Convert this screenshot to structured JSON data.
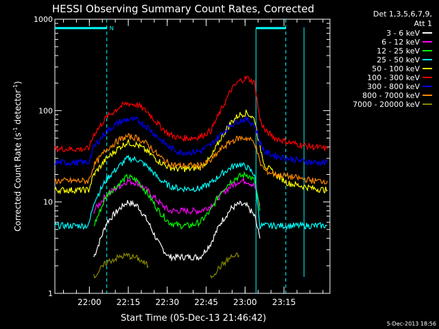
{
  "chart_data": {
    "type": "line",
    "title": "HESSI Observing Summary Count Rates, Corrected",
    "xlabel": "Start Time (05-Dec-13 21:46:42)",
    "ylabel": "Corrected Count Rate (s",
    "ylabel_sup1": "-1",
    "ylabel_mid": " detector",
    "ylabel_sup2": "-1",
    "ylabel_end": ")",
    "yscale": "log",
    "ylim": [
      1,
      1000
    ],
    "xlim_minutes_after_start": [
      0,
      106
    ],
    "x_tick_labels": [
      "22:00",
      "22:15",
      "22:30",
      "22:45",
      "23:00",
      "23:15"
    ],
    "x_tick_minutes": [
      13.3,
      28.3,
      43.3,
      58.3,
      73.3,
      88.3
    ],
    "y_tick_labels": [
      "1",
      "10",
      "100",
      "1000"
    ],
    "y_tick_values": [
      1,
      10,
      100,
      1000
    ],
    "legend_header": [
      "Det 1,3,5,6,7,9,",
      "Att 1"
    ],
    "legend_placement": "right",
    "night_flag_label": "N",
    "footer_date": "5-Dec-2013 18:56",
    "time_sample_minutes": [
      0,
      13,
      15,
      20,
      25,
      28,
      32,
      36,
      40,
      44,
      48,
      52,
      56,
      60,
      64,
      68,
      71,
      74,
      77,
      79,
      81,
      85,
      90,
      95,
      100,
      105
    ],
    "series": [
      {
        "name": "3 - 6 keV",
        "color": "#ffffff",
        "values": [
          null,
          null,
          2.5,
          6,
          8.5,
          10,
          9,
          6,
          3.5,
          2.5,
          2.5,
          2.5,
          2.5,
          3.5,
          6,
          8.5,
          9.5,
          9,
          7,
          4,
          null,
          null,
          null,
          null,
          null,
          null
        ]
      },
      {
        "name": "6 - 12 keV",
        "color": "#ff00ff",
        "values": [
          null,
          null,
          8,
          12,
          15,
          17,
          16,
          13,
          10,
          8,
          8,
          8,
          8,
          9,
          12,
          15,
          17,
          17,
          15,
          9,
          null,
          null,
          null,
          null,
          null,
          null
        ]
      },
      {
        "name": "12 - 25 keV",
        "color": "#00ff00",
        "values": [
          null,
          null,
          5.5,
          12,
          16,
          19,
          17,
          12,
          8,
          6,
          5.5,
          5.5,
          6,
          8,
          13,
          17,
          19,
          20,
          17,
          8,
          null,
          null,
          null,
          null,
          null,
          null
        ]
      },
      {
        "name": "25 - 50 keV",
        "color": "#00ffff",
        "values": [
          5.5,
          5.5,
          10,
          18,
          25,
          30,
          29,
          24,
          18,
          15,
          14,
          14,
          14,
          16,
          20,
          24,
          26,
          24,
          20,
          5.5,
          5.5,
          5.5,
          5.5,
          5.5,
          5.5,
          5.5
        ]
      },
      {
        "name": "50 - 100 keV",
        "color": "#ffff00",
        "values": [
          13.5,
          13.5,
          20,
          30,
          40,
          45,
          42,
          35,
          28,
          24,
          23,
          23,
          24,
          30,
          50,
          75,
          90,
          95,
          80,
          40,
          25,
          20,
          16,
          15,
          14,
          13.5
        ]
      },
      {
        "name": "100 - 300 keV",
        "color": "#ff0000",
        "values": [
          38,
          38,
          55,
          85,
          110,
          120,
          115,
          95,
          70,
          55,
          50,
          50,
          52,
          60,
          100,
          170,
          210,
          230,
          200,
          80,
          60,
          50,
          45,
          42,
          40,
          38
        ]
      },
      {
        "name": "300 - 800 keV",
        "color": "#0000ff",
        "values": [
          27,
          27,
          40,
          60,
          75,
          80,
          78,
          65,
          50,
          40,
          35,
          35,
          36,
          42,
          55,
          70,
          78,
          80,
          70,
          45,
          35,
          32,
          30,
          28,
          27,
          27
        ]
      },
      {
        "name": "800 - 7000 keV",
        "color": "#ff8800",
        "values": [
          17,
          17,
          25,
          38,
          48,
          52,
          50,
          42,
          32,
          26,
          25,
          25,
          25,
          28,
          38,
          46,
          50,
          50,
          45,
          27,
          22,
          20,
          19,
          18,
          17,
          17
        ]
      },
      {
        "name": "7000 - 20000 keV",
        "color": "#888800",
        "values": [
          null,
          null,
          1.5,
          2.2,
          2.5,
          2.6,
          2.4,
          2,
          null,
          null,
          null,
          null,
          null,
          1.5,
          2,
          2.5,
          2.6,
          null,
          null,
          null,
          null,
          null,
          null,
          null,
          null,
          null
        ]
      }
    ]
  }
}
